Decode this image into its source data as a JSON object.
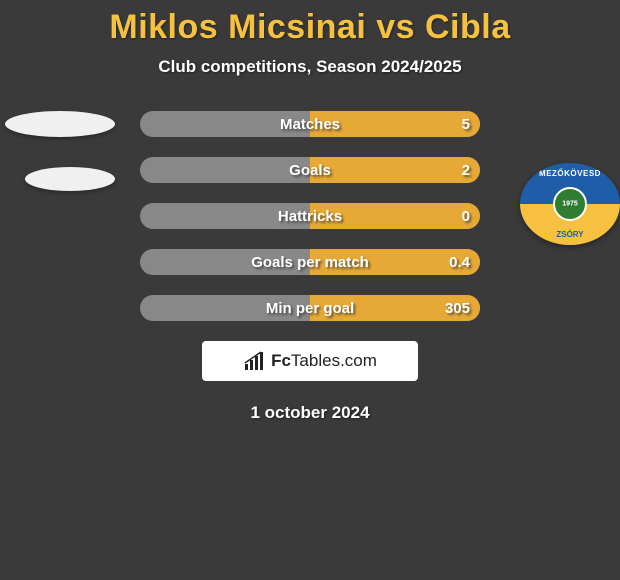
{
  "title": "Miklos Micsinai vs Cibla",
  "subtitle": "Club competitions, Season 2024/2025",
  "colors": {
    "background": "#3a3a3a",
    "accent": "#f6c13f",
    "stat_fill": "#e6a935",
    "stat_empty": "#888888",
    "text_light": "#ffffff"
  },
  "stats": [
    {
      "label": "Matches",
      "left_value": "",
      "right_value": "5",
      "left_pct": 0,
      "right_pct": 100
    },
    {
      "label": "Goals",
      "left_value": "",
      "right_value": "2",
      "left_pct": 0,
      "right_pct": 100
    },
    {
      "label": "Hattricks",
      "left_value": "",
      "right_value": "0",
      "left_pct": 0,
      "right_pct": 100
    },
    {
      "label": "Goals per match",
      "left_value": "",
      "right_value": "0.4",
      "left_pct": 0,
      "right_pct": 100
    },
    {
      "label": "Min per goal",
      "left_value": "",
      "right_value": "305",
      "left_pct": 0,
      "right_pct": 100
    }
  ],
  "badge": {
    "top_text": "MEZŐKÖVESD",
    "bottom_text": "ZSÓRY",
    "year": "1975",
    "top_color": "#1e5ea8",
    "bottom_color": "#f6c13f"
  },
  "brand": {
    "name_bold": "Fc",
    "name_rest": "Tables.com"
  },
  "date": "1 october 2024"
}
